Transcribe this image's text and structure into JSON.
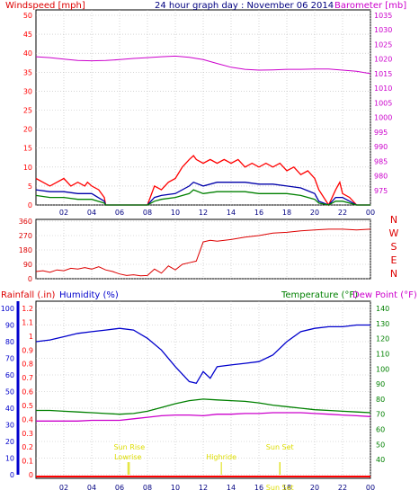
{
  "colors": {
    "wind": "#ff0000",
    "gust": "#ff0000",
    "wind_avg": "#0000aa",
    "wind_green": "#008000",
    "barometer": "#cc00cc",
    "direction": "#dd0000",
    "rain": "#ff0000",
    "humidity": "#0000cc",
    "temperature": "#008000",
    "dewpoint": "#cc00cc",
    "sun_events": "#dddd00",
    "axis_text": "#000080",
    "frame": "#000000"
  },
  "chart_data": [
    {
      "type": "line",
      "title": "24 hour graph day : November 06 2014",
      "ylabel": "Windspeed [mph]",
      "y2label": "Barometer [mb]",
      "ylim": [
        0,
        50
      ],
      "yticks": [
        "0",
        "5",
        "10",
        "15",
        "20",
        "25",
        "30",
        "35",
        "40",
        "45",
        "50"
      ],
      "y2lim": [
        970,
        1035
      ],
      "y2ticks": [
        "975",
        "980",
        "985",
        "990",
        "995",
        "1000",
        "1005",
        "1010",
        "1015",
        "1020",
        "1025",
        "1030",
        "1035"
      ],
      "xticks": [
        "02",
        "04",
        "06",
        "08",
        "10",
        "12",
        "14",
        "16",
        "18",
        "20",
        "22",
        "00"
      ],
      "grid": true,
      "series": [
        {
          "key": "gust",
          "x": [
            0,
            0.5,
            1,
            1.5,
            2,
            2.5,
            3,
            3.5,
            3.7,
            4,
            4.5,
            4.9,
            5,
            8,
            8.2,
            8.5,
            9,
            9.5,
            10,
            10.5,
            11,
            11.3,
            11.5,
            12,
            12.5,
            13,
            13.5,
            14,
            14.5,
            15,
            15.5,
            16,
            16.5,
            17,
            17.5,
            18,
            18.5,
            19,
            19.5,
            20,
            20.3,
            21,
            21.5,
            21.8,
            22,
            22.5,
            23,
            24
          ],
          "y": [
            7,
            6,
            5,
            6,
            7,
            5,
            6,
            5,
            6,
            5,
            4,
            2,
            0,
            0,
            2,
            5,
            4,
            6,
            7,
            10,
            12,
            13,
            12,
            11,
            12,
            11,
            12,
            11,
            12,
            10,
            11,
            10,
            11,
            10,
            11,
            9,
            10,
            8,
            9,
            7,
            4,
            0,
            4,
            6,
            3,
            2,
            0,
            0
          ]
        },
        {
          "key": "wind_avg",
          "x": [
            0,
            1,
            2,
            3,
            4,
            4.9,
            5,
            8,
            8.5,
            9,
            10,
            11,
            11.3,
            12,
            13,
            14,
            15,
            16,
            17,
            18,
            19,
            20,
            20.3,
            21,
            21.5,
            22,
            22.5,
            23,
            24
          ],
          "y": [
            4,
            3.5,
            3.5,
            3,
            3,
            1,
            0,
            0,
            2,
            2.5,
            3,
            5,
            6,
            5,
            6,
            6,
            6,
            5.5,
            5.5,
            5,
            4.5,
            3,
            1,
            0,
            2,
            2,
            1,
            0,
            0
          ]
        },
        {
          "key": "wind_green",
          "x": [
            0,
            1,
            2,
            3,
            4,
            4.9,
            5,
            8,
            8.5,
            9,
            10,
            11,
            11.3,
            12,
            13,
            14,
            15,
            16,
            17,
            18,
            19,
            20,
            20.3,
            21,
            21.5,
            22,
            22.5,
            23,
            24
          ],
          "y": [
            2.5,
            2,
            2,
            1.5,
            1.5,
            0.5,
            0,
            0,
            1,
            1.5,
            2,
            3,
            4,
            3,
            3.5,
            3.5,
            3.5,
            3,
            3,
            3,
            2.5,
            1.5,
            0.5,
            0,
            1,
            1,
            0.5,
            0,
            0
          ]
        },
        {
          "key": "barometer",
          "x": [
            0,
            1,
            2,
            3,
            4,
            5,
            6,
            7,
            8,
            9,
            10,
            11,
            12,
            13,
            14,
            15,
            16,
            17,
            18,
            19,
            20,
            21,
            22,
            23,
            24
          ],
          "y": [
            1020.8,
            1020.5,
            1020,
            1019.5,
            1019.4,
            1019.5,
            1019.8,
            1020.2,
            1020.5,
            1020.8,
            1021,
            1020.6,
            1019.8,
            1018.5,
            1017.2,
            1016.5,
            1016.2,
            1016.3,
            1016.5,
            1016.5,
            1016.6,
            1016.6,
            1016.2,
            1015.8,
            1015
          ]
        }
      ]
    },
    {
      "type": "line",
      "ylabel_letters": [
        "N",
        "W",
        "S",
        "E",
        "N"
      ],
      "ylim": [
        0,
        360
      ],
      "yticks": [
        "0",
        "90",
        "180",
        "270",
        "360"
      ],
      "grid": true,
      "series": [
        {
          "key": "direction",
          "x": [
            0,
            0.5,
            1,
            1.5,
            2,
            2.5,
            3,
            3.5,
            4,
            4.5,
            5,
            5.5,
            6,
            6.5,
            7,
            7.5,
            8,
            8.5,
            9,
            9.5,
            10,
            10.5,
            11,
            11.5,
            12,
            12.5,
            13,
            14,
            15,
            16,
            17,
            18,
            19,
            20,
            21,
            22,
            23,
            24
          ],
          "y": [
            45,
            50,
            40,
            55,
            50,
            65,
            60,
            70,
            60,
            75,
            55,
            45,
            30,
            20,
            25,
            18,
            20,
            60,
            35,
            80,
            55,
            90,
            100,
            110,
            230,
            240,
            235,
            245,
            260,
            270,
            285,
            290,
            300,
            305,
            310,
            310,
            305,
            310
          ]
        }
      ]
    },
    {
      "type": "line",
      "ylabel": "Rainfall (.in)",
      "y2label": "Humidity (%)",
      "y3label": "Temperature (°F)",
      "y4label": "Dew Point (°F)",
      "ylim": [
        0,
        100
      ],
      "yticks": [
        "0",
        "10",
        "20",
        "30",
        "40",
        "50",
        "60",
        "70",
        "80",
        "90",
        "100"
      ],
      "rain_ticks": [
        "0",
        "0.1",
        "0.2",
        "0.3",
        "0.4",
        "0.5",
        "0.6",
        "0.7",
        "0.8",
        "0.9",
        "1",
        "1.1",
        "1.2"
      ],
      "temp_ticks": [
        "40",
        "50",
        "60",
        "70",
        "80",
        "90",
        "100",
        "110",
        "120",
        "130",
        "140"
      ],
      "grid": true,
      "series": [
        {
          "key": "humidity",
          "x": [
            0,
            1,
            2,
            3,
            4,
            5,
            6,
            7,
            8,
            9,
            10,
            11,
            11.5,
            12,
            12.5,
            13,
            14,
            15,
            16,
            17,
            18,
            19,
            20,
            21,
            22,
            23,
            24
          ],
          "y": [
            80,
            81,
            83,
            85,
            86,
            87,
            88,
            87,
            82,
            75,
            65,
            56,
            55,
            62,
            58,
            65,
            66,
            67,
            68,
            72,
            80,
            86,
            88,
            89,
            89,
            90,
            90
          ]
        },
        {
          "key": "temperature",
          "x": [
            0,
            1,
            2,
            3,
            4,
            5,
            6,
            7,
            8,
            9,
            10,
            11,
            12,
            13,
            14,
            15,
            16,
            17,
            18,
            19,
            20,
            21,
            22,
            23,
            24
          ],
          "y": [
            72.5,
            72.5,
            72,
            71.5,
            71,
            70.5,
            70,
            70.5,
            72,
            74.5,
            77,
            79,
            80,
            79.5,
            79,
            78.5,
            77.5,
            76,
            75,
            74,
            73,
            72.5,
            72,
            71.5,
            71
          ]
        },
        {
          "key": "dewpoint",
          "x": [
            0,
            1,
            2,
            3,
            4,
            5,
            6,
            7,
            8,
            9,
            10,
            11,
            12,
            13,
            14,
            15,
            16,
            17,
            18,
            19,
            20,
            21,
            22,
            23,
            24
          ],
          "y": [
            65.5,
            65.5,
            65.5,
            65.5,
            66,
            66,
            66,
            67,
            68,
            69,
            69.5,
            69.5,
            69,
            70,
            70,
            70.5,
            70.5,
            71,
            71,
            71,
            70.5,
            70,
            69.5,
            69,
            68.5
          ]
        },
        {
          "key": "rain",
          "x": [
            0,
            24
          ],
          "y": [
            0,
            0
          ]
        }
      ],
      "events": [
        {
          "label": "Lowrise",
          "hour": 6.6,
          "row": 2
        },
        {
          "label": "Sun Rise",
          "hour": 6.7,
          "row": 1
        },
        {
          "label": "Highride",
          "hour": 13.3,
          "row": 2
        },
        {
          "label": "Sun Set",
          "hour": 17.5,
          "row": 1
        },
        {
          "label": "Sun Set",
          "hour": 17.5,
          "row": 3
        }
      ]
    }
  ]
}
